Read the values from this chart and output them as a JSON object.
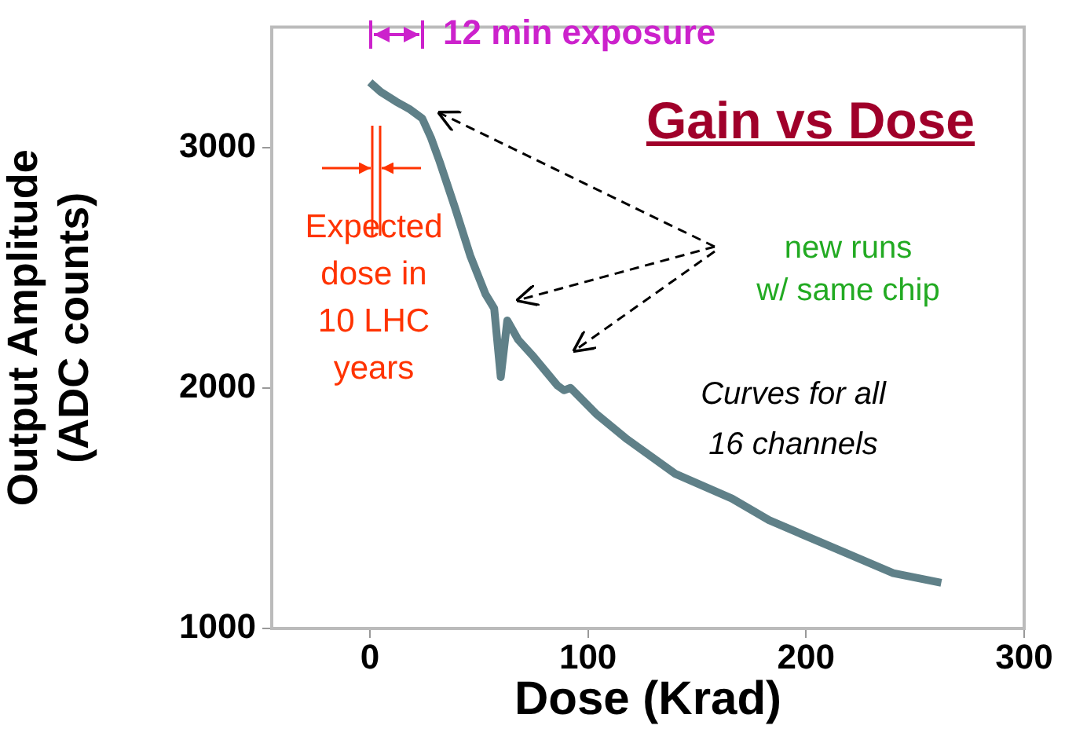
{
  "chart_data": {
    "type": "line",
    "title": "Gain vs Dose",
    "xlabel": "Dose (Krad)",
    "ylabel": "Output Amplitude\n(ADC counts)",
    "annotations": [
      "12 min exposure",
      "Expected\ndose in\n10 LHC\nyears",
      "new runs\nw/ same chip",
      "Curves for all\n16 channels"
    ],
    "series": [
      {
        "color": "#5f8088",
        "x": [
          0,
          5,
          12,
          18,
          24,
          28,
          32,
          39,
          46,
          53,
          57,
          60,
          63,
          68,
          75,
          86,
          89,
          92,
          104,
          118,
          140,
          166,
          183,
          214,
          240,
          262
        ],
        "values": [
          3270,
          3230,
          3190,
          3160,
          3120,
          3040,
          2940,
          2750,
          2550,
          2390,
          2330,
          2045,
          2280,
          2200,
          2130,
          2010,
          1990,
          2000,
          1890,
          1786,
          1643,
          1540,
          1450,
          1330,
          1230,
          1190
        ]
      }
    ],
    "xlim": [
      -45,
      300
    ],
    "xticks": [
      0,
      100,
      200,
      300
    ],
    "ylim": [
      1000,
      3500
    ],
    "yticks": [
      1000,
      2000,
      3000
    ],
    "grid": false,
    "legend": false,
    "marker": "none",
    "line_style": "solid"
  }
}
